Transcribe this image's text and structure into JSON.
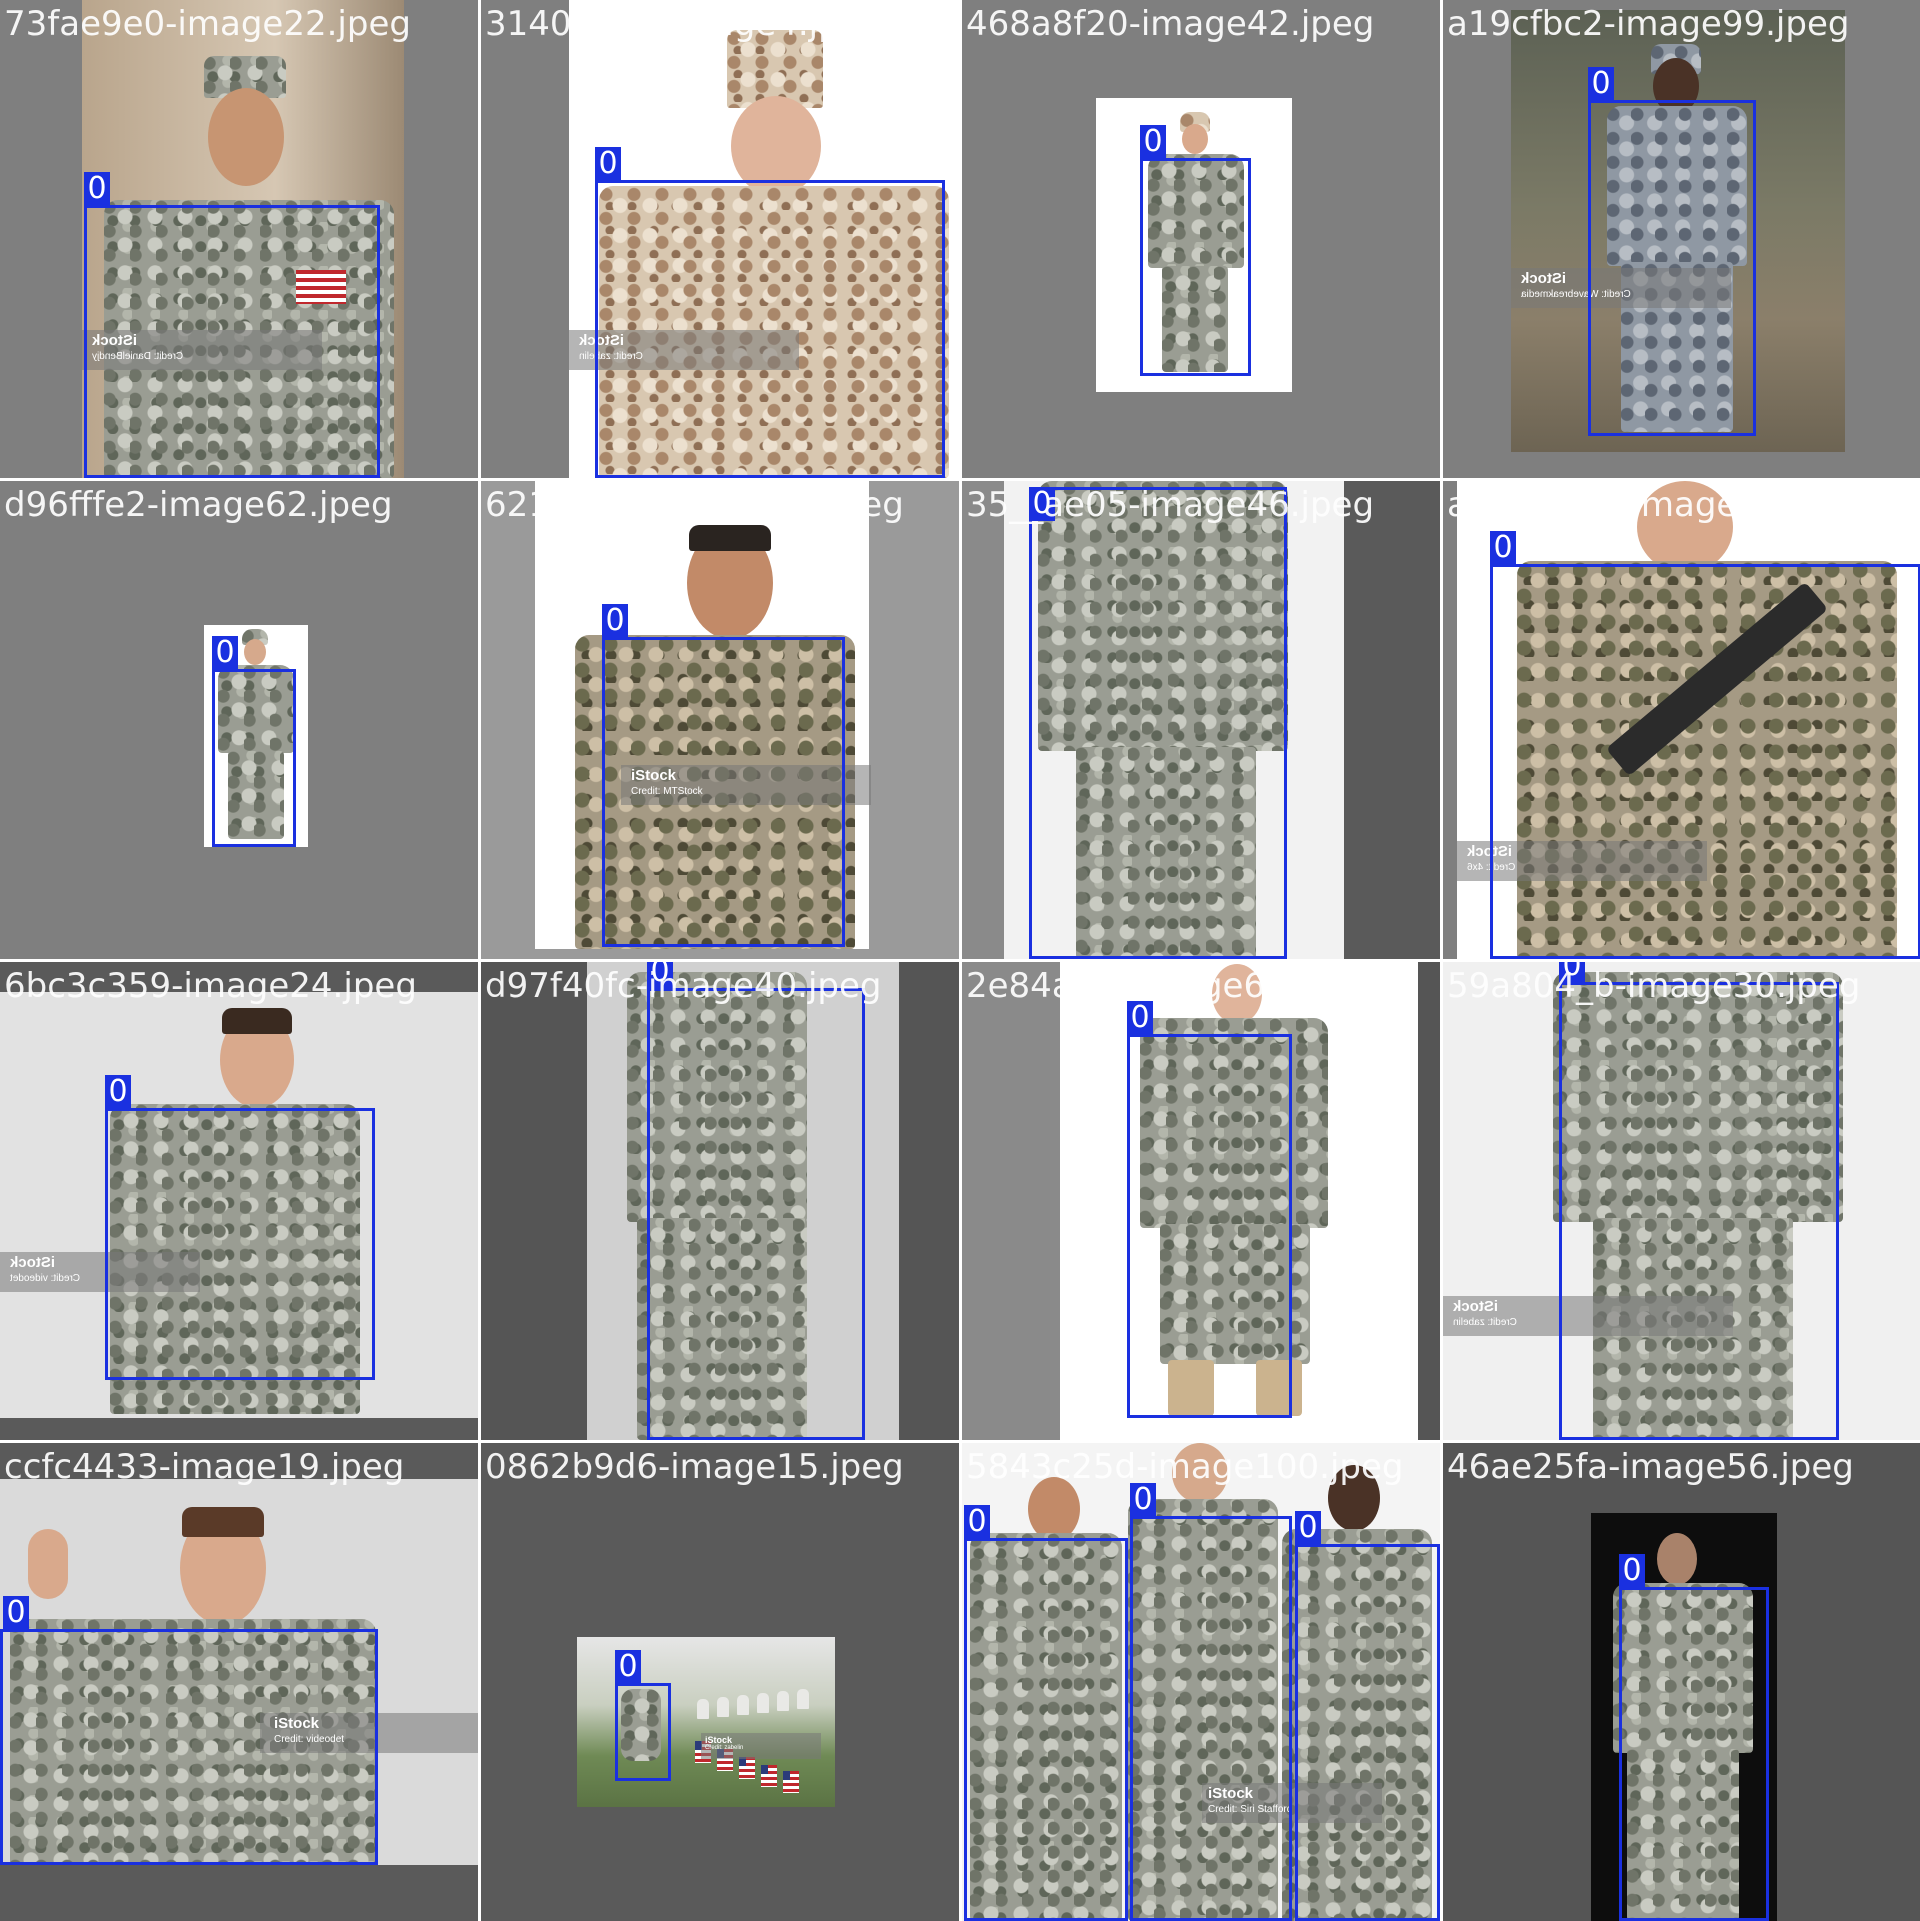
{
  "mosaic": {
    "detection_class_label": "0",
    "box_color": "#1a30e0",
    "tiles": [
      {
        "filename": "73fae9e0-image22.jpeg",
        "watermark": {
          "text": "iStock",
          "credit": "Credit: DanielBendjy"
        }
      },
      {
        "filename": "31406759-image4.jpeg",
        "watermark": {
          "text": "iStock",
          "credit": "Credit: zabelin"
        }
      },
      {
        "filename": "468a8f20-image42.jpeg"
      },
      {
        "filename": "a19cfbc2-image99.jpeg",
        "watermark": {
          "text": "iStock",
          "credit": "Credit: Wavebreakmedia"
        }
      },
      {
        "filename": "d96fffe2-image62.jpeg"
      },
      {
        "filename": "621484b6-image16.jpeg",
        "watermark": {
          "text": "iStock",
          "credit": "Credit: MTStock"
        }
      },
      {
        "filename": "35__ae05-image46.jpeg"
      },
      {
        "filename": "a25d79b0-image92.jpeg",
        "watermark": {
          "text": "iStock",
          "credit": "Credit: 4x6"
        }
      },
      {
        "filename": "6bc3c359-image24.jpeg",
        "watermark": {
          "text": "iStock",
          "credit": "Credit: videodet"
        }
      },
      {
        "filename": "d97f40fc-image40.jpeg"
      },
      {
        "filename": "2e84ae0f-image65.jpeg"
      },
      {
        "filename": "59a804_b-image30.jpeg",
        "watermark": {
          "text": "iStock",
          "credit": "Credit: zabelin"
        }
      },
      {
        "filename": "ccfc4433-image19.jpeg",
        "watermark": {
          "text": "iStock",
          "credit": "Credit: videodet"
        }
      },
      {
        "filename": "0862b9d6-image15.jpeg",
        "watermark": {
          "text": "iStock",
          "credit": "Credit: zabelin"
        }
      },
      {
        "filename": "5843c25d-image100.jpeg",
        "watermark": {
          "text": "iStock",
          "credit": "Credit: Siri Stafford"
        }
      },
      {
        "filename": "46ae25fa-image56.jpeg"
      }
    ]
  }
}
